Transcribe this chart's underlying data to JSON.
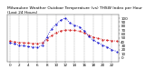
{
  "title": "Milwaukee Weather Outdoor Temperature (vs) THSW Index per Hour (Last 24 Hours)",
  "hours": [
    0,
    1,
    2,
    3,
    4,
    5,
    6,
    7,
    8,
    9,
    10,
    11,
    12,
    13,
    14,
    15,
    16,
    17,
    18,
    19,
    20,
    21,
    22,
    23
  ],
  "temp": [
    42,
    40,
    39,
    38,
    37,
    36,
    36,
    38,
    46,
    56,
    63,
    68,
    70,
    70,
    69,
    67,
    63,
    57,
    52,
    49,
    46,
    44,
    43,
    42
  ],
  "thsw": [
    38,
    35,
    32,
    30,
    28,
    27,
    26,
    32,
    52,
    72,
    85,
    95,
    100,
    88,
    82,
    78,
    68,
    55,
    44,
    38,
    32,
    27,
    20,
    16
  ],
  "temp_color": "#cc0000",
  "thsw_color": "#0000cc",
  "background": "#ffffff",
  "ylim_min": -10,
  "ylim_max": 110,
  "ytick_values": [
    0,
    10,
    20,
    30,
    40,
    50,
    60,
    70,
    80,
    90,
    100
  ],
  "xtick_values": [
    0,
    2,
    4,
    6,
    8,
    10,
    12,
    14,
    16,
    18,
    20,
    22
  ],
  "grid_color": "#999999",
  "title_fontsize": 3.2,
  "tick_fontsize": 3.0,
  "linewidth": 0.6,
  "markersize": 1.0
}
